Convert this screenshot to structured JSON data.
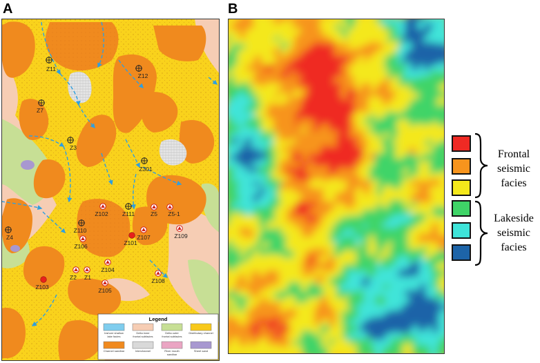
{
  "panels": {
    "a_letter": "A",
    "b_letter": "B"
  },
  "wells": [
    {
      "name": "Z11",
      "type": "cross"
    },
    {
      "name": "Z12",
      "type": "cross"
    },
    {
      "name": "Z7",
      "type": "cross"
    },
    {
      "name": "Z3",
      "type": "cross"
    },
    {
      "name": "Z301",
      "type": "cross"
    },
    {
      "name": "Z111",
      "type": "cross"
    },
    {
      "name": "Z4",
      "type": "cross"
    },
    {
      "name": "Z110",
      "type": "cross"
    },
    {
      "name": "Z102",
      "type": "triangle"
    },
    {
      "name": "Z5",
      "type": "triangle"
    },
    {
      "name": "Z5-1",
      "type": "triangle"
    },
    {
      "name": "Z106",
      "type": "triangle"
    },
    {
      "name": "Z107",
      "type": "triangle"
    },
    {
      "name": "Z109",
      "type": "triangle"
    },
    {
      "name": "Z101",
      "type": "red"
    },
    {
      "name": "Z2",
      "type": "triangle"
    },
    {
      "name": "Z1",
      "type": "triangle"
    },
    {
      "name": "Z104",
      "type": "triangle"
    },
    {
      "name": "Z108",
      "type": "triangle"
    },
    {
      "name": "Z103",
      "type": "red"
    },
    {
      "name": "Z105",
      "type": "triangle"
    }
  ],
  "legend": {
    "title": "Legend",
    "items": [
      {
        "label": "Inshore shallow lake facies",
        "color": "#7fcdee"
      },
      {
        "label": "Delta inner frontal subfacies",
        "color": "#f6cdb4"
      },
      {
        "label": "Delta outer frontal subfacies",
        "color": "#c7df95"
      },
      {
        "label": "Distributary channel",
        "color": "#f8c91a"
      },
      {
        "label": "Channel sandbar",
        "color": "#f08a1e"
      },
      {
        "label": "Interchannel",
        "color": "#d9d9d9"
      },
      {
        "label": "River mouth sandbar",
        "color": "#eaa5c3"
      },
      {
        "label": "Sheet sand",
        "color": "#a898d0"
      }
    ]
  },
  "facies_legend": {
    "frontal_label": [
      "Frontal",
      "seismic",
      "facies"
    ],
    "lakeside_label": [
      "Lakeside",
      "seismic",
      "facies"
    ],
    "frontal_colors": [
      "#ef2a24",
      "#f7941d",
      "#f4e81b"
    ],
    "lakeside_colors": [
      "#3fd467",
      "#3fe4d9",
      "#1d64a8"
    ]
  },
  "map_colors": {
    "background": "#f9d21c",
    "sandbar": "#f08a1e",
    "inner_front": "#f6cdb4",
    "outer_front": "#c7df95",
    "interchannel": "#d9d9d9",
    "sheet_sand": "#a898d0",
    "well_red": "#e8201c",
    "flow_arrow": "#2e9fe0"
  }
}
